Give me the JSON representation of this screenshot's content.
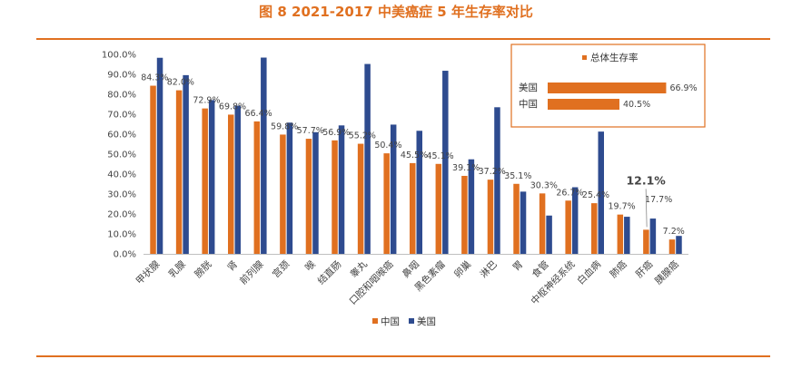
{
  "title": "图 8 2021-2017 中美癌症 5 年生存率对比",
  "colors": {
    "china": "#e07020",
    "usa": "#2e4b8f",
    "accent": "#e07020",
    "highlight": "#c00000"
  },
  "chart_data": {
    "type": "bar",
    "title": "2021-2017 中美癌症 5 年生存率对比",
    "xlabel": "",
    "ylabel": "",
    "ylim": [
      0,
      100
    ],
    "y_ticks": [
      "0.0%",
      "10.0%",
      "20.0%",
      "30.0%",
      "40.0%",
      "50.0%",
      "60.0%",
      "70.0%",
      "80.0%",
      "90.0%",
      "100.0%"
    ],
    "categories": [
      "甲状腺",
      "乳腺",
      "膀胱",
      "肾",
      "前列腺",
      "宫颈",
      "喉",
      "结直肠",
      "睾丸",
      "口腔和咽喉癌",
      "鼻咽",
      "黑色素瘤",
      "卵巢",
      "淋巴",
      "胃",
      "食管",
      "中枢神经系统",
      "白血病",
      "肺癌",
      "肝癌",
      "胰腺癌"
    ],
    "series": [
      {
        "name": "中国",
        "values": [
          84.3,
          82.0,
          72.9,
          69.8,
          66.4,
          59.8,
          57.7,
          56.9,
          55.2,
          50.4,
          45.5,
          45.1,
          39.1,
          37.2,
          35.1,
          30.3,
          26.7,
          25.4,
          19.7,
          12.1,
          7.2
        ]
      },
      {
        "name": "美国",
        "values": [
          98.3,
          89.6,
          77.1,
          74.3,
          98.4,
          65.8,
          61.0,
          64.4,
          95.2,
          64.8,
          61.7,
          91.8,
          47.4,
          73.5,
          31.2,
          19.2,
          33.4,
          61.3,
          18.6,
          17.7,
          9.0
        ]
      }
    ],
    "data_labels": [
      "84.3%",
      "82.0%",
      "72.9%",
      "69.8%",
      "66.4%",
      "59.8%",
      "57.7%",
      "56.9%",
      "55.2%",
      "50.4%",
      "45.5%",
      "45.1%",
      "39.1%",
      "37.2%",
      "35.1%",
      "30.3%",
      "26.7%",
      "25.4%",
      "19.7%",
      "12.1%",
      "17.7%",
      "7.2%"
    ],
    "highlight_index": 19,
    "legend": {
      "items": [
        "中国",
        "美国"
      ],
      "placement": "bottom-center"
    }
  },
  "inset": {
    "title": "总体生存率",
    "rows": [
      {
        "label": "美国",
        "value": 66.9,
        "value_text": "66.9%"
      },
      {
        "label": "中国",
        "value": 40.5,
        "value_text": "40.5%"
      }
    ]
  }
}
